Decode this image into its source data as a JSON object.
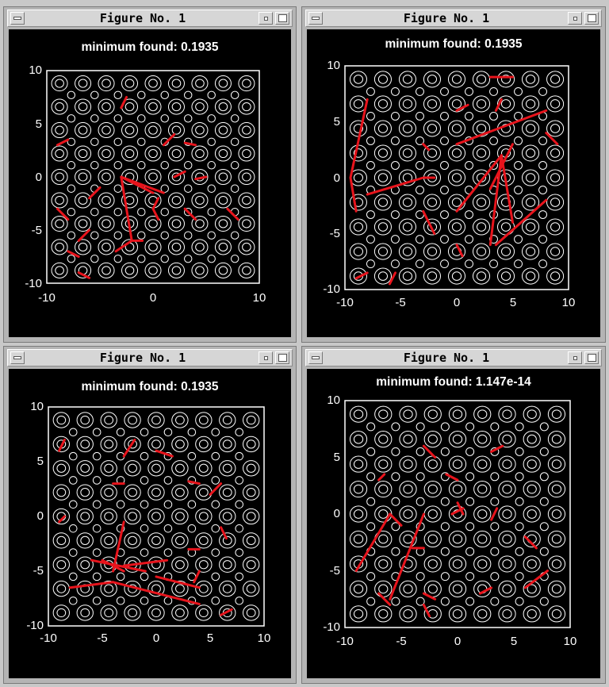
{
  "windows": [
    {
      "title": "Figure No. 1",
      "plot": {
        "title": "minimum found: 0.1935",
        "xticks": [
          "-10",
          "0",
          "10"
        ],
        "yticks": [
          "10",
          "5",
          "0",
          "-5",
          "-10"
        ]
      }
    },
    {
      "title": "Figure No. 1",
      "plot": {
        "title": "minimum found: 0.1935",
        "xticks": [
          "-10",
          "-5",
          "0",
          "5",
          "10"
        ],
        "yticks": [
          "10",
          "5",
          "0",
          "-5",
          "-10"
        ]
      }
    },
    {
      "title": "Figure No. 1",
      "plot": {
        "title": "minimum found: 0.1935",
        "xticks": [
          "-10",
          "-5",
          "0",
          "5",
          "10"
        ],
        "yticks": [
          "10",
          "5",
          "0",
          "-5",
          "-10"
        ]
      }
    },
    {
      "title": "Figure No. 1",
      "plot": {
        "title": "minimum found: 1.147e-14",
        "xticks": [
          "-10",
          "-5",
          "0",
          "5",
          "10"
        ],
        "yticks": [
          "10",
          "5",
          "0",
          "-5",
          "-10"
        ]
      }
    }
  ],
  "chart_data": [
    {
      "type": "contour",
      "title": "minimum found: 0.1935",
      "xlim": [
        -10,
        10
      ],
      "ylim": [
        -10,
        10
      ],
      "line_color": "#e8141c",
      "paths": [
        [
          [
            0,
            -1.5
          ],
          [
            -3,
            0
          ],
          [
            -2,
            -6
          ],
          [
            -3.5,
            -7
          ]
        ],
        [
          [
            -3,
            0
          ],
          [
            1,
            -1.5
          ]
        ],
        [
          [
            0.5,
            -2
          ],
          [
            0,
            -3
          ],
          [
            0.5,
            -4
          ]
        ],
        [
          [
            -3,
            6.5
          ],
          [
            -2.5,
            7.5
          ]
        ],
        [
          [
            -9,
            3
          ],
          [
            -8,
            3.5
          ]
        ],
        [
          [
            1,
            3
          ],
          [
            2,
            4
          ]
        ],
        [
          [
            3,
            3.2
          ],
          [
            4,
            3
          ]
        ],
        [
          [
            2,
            0
          ],
          [
            3,
            0.5
          ]
        ],
        [
          [
            4,
            -0.2
          ],
          [
            5,
            0
          ]
        ],
        [
          [
            -6,
            -2
          ],
          [
            -5,
            -1
          ]
        ],
        [
          [
            -9,
            -3
          ],
          [
            -8,
            -4
          ]
        ],
        [
          [
            3,
            -3
          ],
          [
            4,
            -4
          ]
        ],
        [
          [
            7,
            -3
          ],
          [
            8,
            -4
          ]
        ],
        [
          [
            -7,
            -6
          ],
          [
            -6,
            -5
          ]
        ],
        [
          [
            -2,
            -6
          ],
          [
            -1,
            -6
          ]
        ],
        [
          [
            -7,
            -9
          ],
          [
            -6,
            -9.5
          ]
        ],
        [
          [
            -8,
            -7
          ],
          [
            -7,
            -7.5
          ]
        ]
      ]
    },
    {
      "type": "contour",
      "title": "minimum found: 0.1935",
      "xlim": [
        -10,
        10
      ],
      "ylim": [
        -10,
        10
      ],
      "line_color": "#e8141c",
      "paths": [
        [
          [
            -9,
            -3
          ],
          [
            -9.5,
            0
          ],
          [
            -8,
            7
          ]
        ],
        [
          [
            -8,
            -1.5
          ],
          [
            -3,
            0
          ],
          [
            -2,
            0
          ]
        ],
        [
          [
            0,
            3
          ],
          [
            8,
            6
          ]
        ],
        [
          [
            3,
            9
          ],
          [
            5,
            9
          ]
        ],
        [
          [
            4,
            7
          ],
          [
            3.5,
            6
          ]
        ],
        [
          [
            0,
            6
          ],
          [
            1,
            6.5
          ]
        ],
        [
          [
            -3,
            -3
          ],
          [
            -2,
            -5
          ]
        ],
        [
          [
            0,
            -6
          ],
          [
            0.5,
            -7
          ]
        ],
        [
          [
            -9,
            -9
          ],
          [
            -8,
            -8.5
          ]
        ],
        [
          [
            -6,
            -9.5
          ],
          [
            -5.5,
            -8.5
          ]
        ],
        [
          [
            0,
            -3
          ],
          [
            4,
            2
          ]
        ],
        [
          [
            4,
            2
          ],
          [
            3,
            -6
          ]
        ],
        [
          [
            4,
            2
          ],
          [
            5,
            -4
          ]
        ],
        [
          [
            3.5,
            -6
          ],
          [
            8,
            -2
          ]
        ],
        [
          [
            3,
            -1
          ],
          [
            5,
            3
          ]
        ],
        [
          [
            8,
            4
          ],
          [
            9,
            3
          ]
        ],
        [
          [
            -3,
            3
          ],
          [
            -2.5,
            2.5
          ]
        ]
      ]
    },
    {
      "type": "contour",
      "title": "minimum found: 0.1935",
      "xlim": [
        -10,
        10
      ],
      "ylim": [
        -10,
        10
      ],
      "line_color": "#e8141c",
      "paths": [
        [
          [
            -9,
            6
          ],
          [
            -8.5,
            7
          ]
        ],
        [
          [
            -3,
            5.5
          ],
          [
            -2,
            7
          ]
        ],
        [
          [
            0,
            6
          ],
          [
            1.5,
            5.5
          ]
        ],
        [
          [
            -4,
            3
          ],
          [
            -3,
            3
          ]
        ],
        [
          [
            3,
            3.2
          ],
          [
            4,
            3
          ]
        ],
        [
          [
            5,
            2
          ],
          [
            6,
            3
          ]
        ],
        [
          [
            -9,
            -0.5
          ],
          [
            -8.5,
            0
          ]
        ],
        [
          [
            -3,
            -0.5
          ],
          [
            -4,
            -5
          ]
        ],
        [
          [
            -5,
            -4
          ],
          [
            -3,
            -5
          ]
        ],
        [
          [
            -6,
            -4
          ],
          [
            -1,
            -5
          ]
        ],
        [
          [
            -3,
            -4.5
          ],
          [
            1,
            -4
          ]
        ],
        [
          [
            -8,
            -6.5
          ],
          [
            -4,
            -6
          ]
        ],
        [
          [
            -4,
            -6
          ],
          [
            4,
            -8
          ]
        ],
        [
          [
            0,
            -5.5
          ],
          [
            4,
            -6.5
          ]
        ],
        [
          [
            3,
            -3
          ],
          [
            4,
            -3
          ]
        ],
        [
          [
            4,
            -5
          ],
          [
            3.5,
            -6
          ]
        ],
        [
          [
            6,
            -1
          ],
          [
            6.5,
            -2
          ]
        ],
        [
          [
            6,
            -9
          ],
          [
            7,
            -8.5
          ]
        ]
      ]
    },
    {
      "type": "contour",
      "title": "minimum found: 1.147e-14",
      "xlim": [
        -10,
        10
      ],
      "ylim": [
        -10,
        10
      ],
      "line_color": "#e8141c",
      "paths": [
        [
          [
            -9,
            -5
          ],
          [
            -6,
            0
          ]
        ],
        [
          [
            -6,
            -7.5
          ],
          [
            -3,
            0
          ]
        ],
        [
          [
            -6,
            0
          ],
          [
            -5,
            -1
          ]
        ],
        [
          [
            -7,
            3
          ],
          [
            -6.5,
            3.5
          ]
        ],
        [
          [
            -7,
            -7
          ],
          [
            -6,
            -8
          ]
        ],
        [
          [
            -3,
            6
          ],
          [
            -2,
            5
          ]
        ],
        [
          [
            -1,
            3.5
          ],
          [
            0,
            3
          ]
        ],
        [
          [
            0,
            1
          ],
          [
            0.5,
            0
          ]
        ],
        [
          [
            -0.5,
            0
          ],
          [
            0.5,
            0.5
          ]
        ],
        [
          [
            3,
            -0.5
          ],
          [
            3.5,
            0.5
          ]
        ],
        [
          [
            3,
            5.5
          ],
          [
            4,
            6
          ]
        ],
        [
          [
            6,
            -2
          ],
          [
            7,
            -3
          ]
        ],
        [
          [
            6,
            -6.5
          ],
          [
            8,
            -5
          ]
        ],
        [
          [
            2,
            -7
          ],
          [
            3,
            -6.5
          ]
        ],
        [
          [
            -3,
            -8
          ],
          [
            -2.5,
            -9
          ]
        ],
        [
          [
            -3,
            -7
          ],
          [
            -2,
            -7.5
          ]
        ],
        [
          [
            -4,
            -3
          ],
          [
            -3,
            -3
          ]
        ]
      ]
    }
  ]
}
